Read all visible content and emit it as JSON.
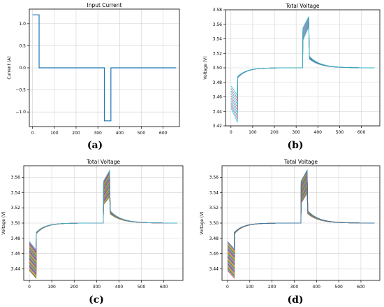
{
  "chart_data": [
    {
      "type": "line",
      "panel_label": "(a)",
      "title": "Input Current",
      "xlabel": "",
      "ylabel": "Current (A)",
      "xlim": [
        -15,
        675
      ],
      "ylim": [
        -1.33,
        1.33
      ],
      "xticks": [
        0,
        100,
        200,
        300,
        400,
        500,
        600
      ],
      "yticks": [
        -1.0,
        -0.5,
        0.0,
        0.5,
        1.0
      ],
      "ytick_labels": [
        "−1.0",
        "−0.5",
        "0.0",
        "0.5",
        "1.0"
      ],
      "grid": true,
      "series": [
        {
          "color": "#1f77b4",
          "x": [
            0,
            30,
            30,
            330,
            330,
            360,
            360,
            660
          ],
          "y": [
            1.2,
            1.2,
            0,
            0,
            -1.2,
            -1.2,
            0,
            0
          ]
        }
      ]
    },
    {
      "type": "line",
      "panel_label": "(b)",
      "title": "Total Voltage",
      "xlabel": "",
      "ylabel": "Voltage (V)",
      "xlim": [
        -25,
        685
      ],
      "ylim": [
        3.42,
        3.58
      ],
      "xticks": [
        0,
        100,
        200,
        300,
        400,
        500,
        600
      ],
      "yticks": [
        3.42,
        3.44,
        3.46,
        3.48,
        3.5,
        3.52,
        3.54,
        3.56,
        3.58
      ],
      "ytick_labels": [
        "3.42",
        "3.44",
        "3.46",
        "3.48",
        "3.50",
        "3.52",
        "3.54",
        "3.56",
        "3.58"
      ],
      "grid": true,
      "family": {
        "count": 10,
        "low_start": [
          3.445,
          3.475
        ],
        "low_end": [
          3.425,
          3.462
        ],
        "high_start": [
          3.538,
          3.555
        ],
        "high_end": [
          3.558,
          3.572
        ]
      }
    },
    {
      "type": "line",
      "panel_label": "(c)",
      "title": "Total Voltage",
      "xlabel": "",
      "ylabel": "Voltage (V)",
      "xlim": [
        -25,
        685
      ],
      "ylim": [
        3.425,
        3.575
      ],
      "xticks": [
        0,
        100,
        200,
        300,
        400,
        500,
        600
      ],
      "yticks": [
        3.44,
        3.46,
        3.48,
        3.5,
        3.52,
        3.54,
        3.56
      ],
      "ytick_labels": [
        "3.44",
        "3.46",
        "3.48",
        "3.50",
        "3.52",
        "3.54",
        "3.56"
      ],
      "grid": true,
      "family": {
        "count": 40,
        "low_start": [
          3.438,
          3.476
        ],
        "low_end": [
          3.428,
          3.465
        ],
        "high_start": [
          3.524,
          3.555
        ],
        "high_end": [
          3.535,
          3.57
        ]
      }
    },
    {
      "type": "line",
      "panel_label": "(d)",
      "title": "Total Voltage",
      "xlabel": "",
      "ylabel": "Voltage (V)",
      "xlim": [
        -25,
        685
      ],
      "ylim": [
        3.425,
        3.575
      ],
      "xticks": [
        0,
        100,
        200,
        300,
        400,
        500,
        600
      ],
      "yticks": [
        3.44,
        3.46,
        3.48,
        3.5,
        3.52,
        3.54,
        3.56
      ],
      "ytick_labels": [
        "3.44",
        "3.46",
        "3.48",
        "3.50",
        "3.52",
        "3.54",
        "3.56"
      ],
      "grid": true,
      "family": {
        "count": 40,
        "low_start": [
          3.438,
          3.476
        ],
        "low_end": [
          3.428,
          3.466
        ],
        "high_start": [
          3.526,
          3.555
        ],
        "high_end": [
          3.54,
          3.57
        ]
      }
    }
  ],
  "colors": {
    "palette": [
      "#1f77b4",
      "#ff7f0e",
      "#2ca02c",
      "#d62728",
      "#9467bd",
      "#8c564b",
      "#e377c2",
      "#7f7f7f",
      "#bcbd22",
      "#17becf"
    ],
    "grid": "#d0d0d0",
    "axis": "#000000"
  }
}
